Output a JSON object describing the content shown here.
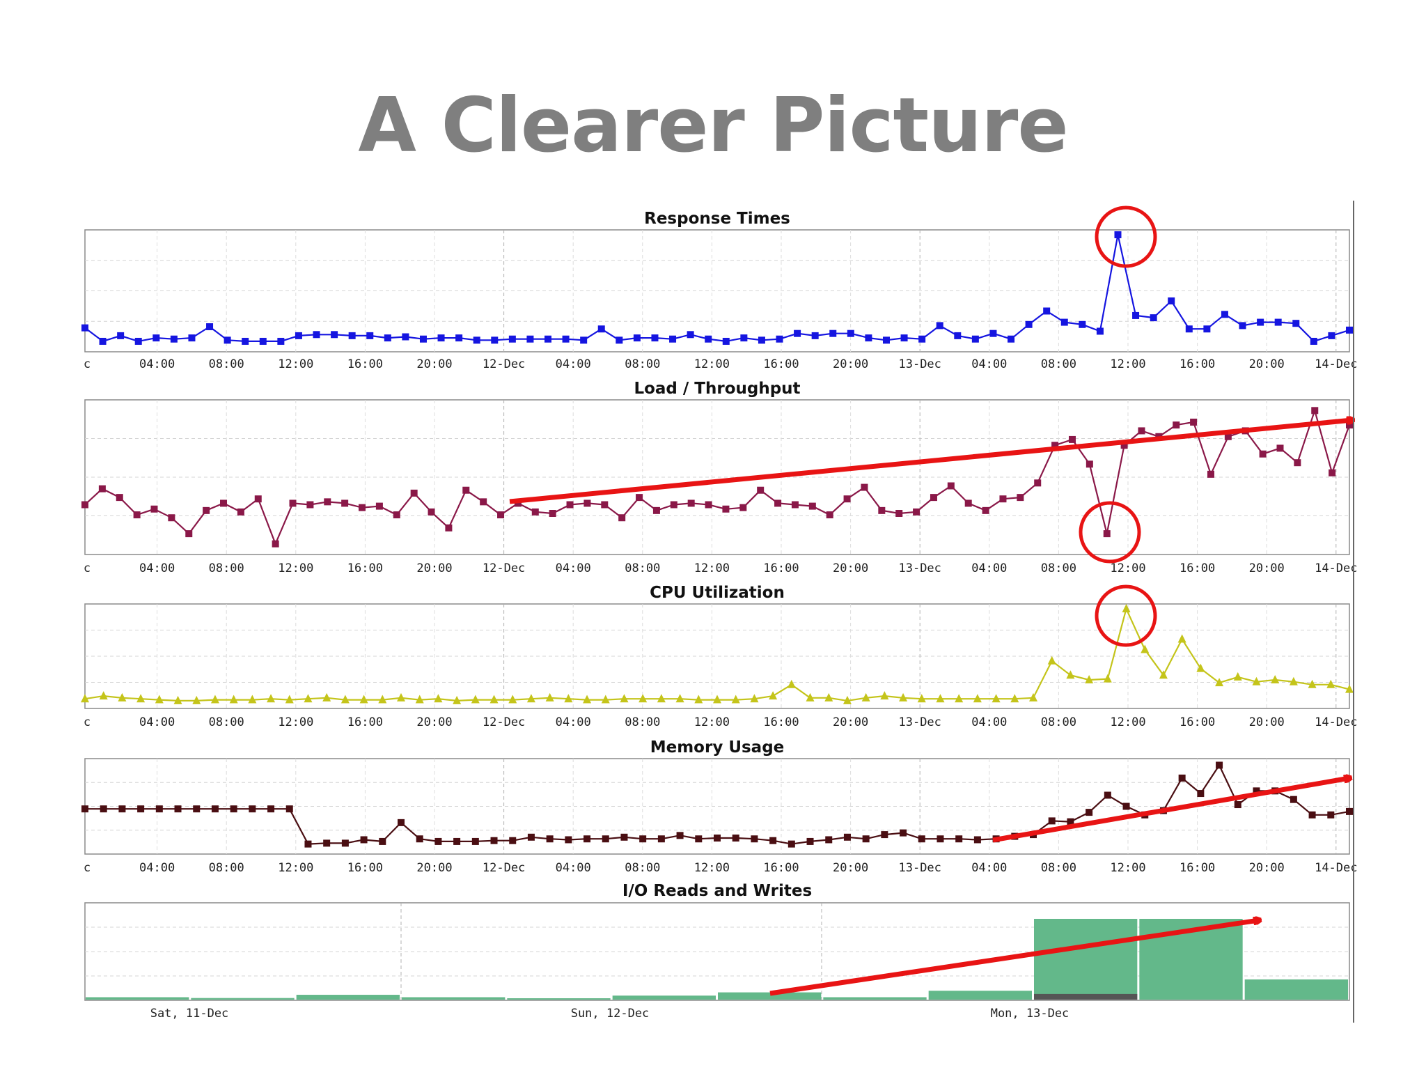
{
  "slide_title": "A Clearer Picture",
  "colors": {
    "response": "#1515e0",
    "load": "#8a1848",
    "cpu": "#c4c41a",
    "memory": "#4a0e12",
    "io_bar": "#63b88a",
    "io_dark": "#555555",
    "annotation": "#e81414"
  },
  "time_ticks": [
    "c",
    "04:00",
    "08:00",
    "12:00",
    "16:00",
    "20:00",
    "12-Dec",
    "04:00",
    "08:00",
    "12:00",
    "16:00",
    "20:00",
    "13-Dec",
    "04:00",
    "08:00",
    "12:00",
    "16:00",
    "20:00",
    "14-Dec"
  ],
  "day_ticks": [
    "Sat, 11-Dec",
    "Sun, 12-Dec",
    "Mon, 13-Dec"
  ],
  "chart_data": [
    {
      "type": "line",
      "title": "Response Times",
      "marker": "square",
      "x_ticks": [
        "c",
        "04:00",
        "08:00",
        "12:00",
        "16:00",
        "20:00",
        "12-Dec",
        "04:00",
        "08:00",
        "12:00",
        "16:00",
        "20:00",
        "13-Dec",
        "04:00",
        "08:00",
        "12:00",
        "16:00",
        "20:00",
        "14-Dec"
      ],
      "ylim": [
        0,
        100
      ],
      "series": [
        {
          "values": [
            17,
            5,
            10,
            5,
            8,
            7,
            8,
            18,
            6,
            5,
            5,
            5,
            10,
            11,
            11,
            10,
            10,
            8,
            9,
            7,
            8,
            8,
            6,
            6,
            7,
            7,
            7,
            7,
            6,
            16,
            6,
            8,
            8,
            7,
            11,
            7,
            5,
            8,
            6,
            7,
            12,
            10,
            12,
            12,
            8,
            6,
            8,
            7,
            19,
            10,
            7,
            12,
            7,
            20,
            32,
            22,
            20,
            14,
            100,
            28,
            26,
            41,
            16,
            16,
            29,
            19,
            22,
            22,
            21,
            5,
            10,
            15
          ]
        }
      ],
      "annotations": [
        {
          "type": "circle",
          "target": "peak"
        }
      ]
    },
    {
      "type": "line",
      "title": "Load / Throughput",
      "marker": "square",
      "x_ticks": [
        "c",
        "04:00",
        "08:00",
        "12:00",
        "16:00",
        "20:00",
        "12-Dec",
        "04:00",
        "08:00",
        "12:00",
        "16:00",
        "20:00",
        "13-Dec",
        "04:00",
        "08:00",
        "12:00",
        "16:00",
        "20:00",
        "14-Dec"
      ],
      "ylim": [
        0,
        100
      ],
      "series": [
        {
          "values": [
            31,
            42,
            36,
            24,
            28,
            22,
            11,
            27,
            32,
            26,
            35,
            4,
            32,
            31,
            33,
            32,
            29,
            30,
            24,
            39,
            26,
            15,
            41,
            33,
            24,
            32,
            26,
            25,
            31,
            32,
            31,
            22,
            36,
            27,
            31,
            32,
            31,
            28,
            29,
            41,
            32,
            31,
            30,
            24,
            35,
            43,
            27,
            25,
            26,
            36,
            44,
            32,
            27,
            35,
            36,
            46,
            72,
            76,
            59,
            11,
            72,
            82,
            78,
            86,
            88,
            52,
            78,
            82,
            66,
            70,
            60,
            96,
            53,
            86
          ]
        }
      ],
      "annotations": [
        {
          "type": "circle",
          "target": "dip"
        },
        {
          "type": "arrow",
          "direction": "up-trend"
        }
      ]
    },
    {
      "type": "line",
      "title": "CPU Utilization",
      "marker": "triangle",
      "x_ticks": [
        "c",
        "04:00",
        "08:00",
        "12:00",
        "16:00",
        "20:00",
        "12-Dec",
        "04:00",
        "08:00",
        "12:00",
        "16:00",
        "20:00",
        "13-Dec",
        "04:00",
        "08:00",
        "12:00",
        "16:00",
        "20:00",
        "14-Dec"
      ],
      "ylim": [
        0,
        100
      ],
      "series": [
        {
          "values": [
            5,
            8,
            6,
            5,
            4,
            3,
            3,
            4,
            4,
            4,
            5,
            4,
            5,
            6,
            4,
            4,
            4,
            6,
            4,
            5,
            3,
            4,
            4,
            4,
            5,
            6,
            5,
            4,
            4,
            5,
            5,
            5,
            5,
            4,
            4,
            4,
            5,
            8,
            20,
            6,
            6,
            3,
            6,
            8,
            6,
            5,
            5,
            5,
            5,
            5,
            5,
            6,
            45,
            30,
            25,
            26,
            100,
            57,
            30,
            68,
            37,
            22,
            28,
            23,
            25,
            23,
            20,
            20,
            15
          ]
        }
      ],
      "annotations": [
        {
          "type": "circle",
          "target": "peak"
        }
      ]
    },
    {
      "type": "line",
      "title": "Memory Usage",
      "marker": "square",
      "x_ticks": [
        "c",
        "04:00",
        "08:00",
        "12:00",
        "16:00",
        "20:00",
        "12-Dec",
        "04:00",
        "08:00",
        "12:00",
        "16:00",
        "20:00",
        "13-Dec",
        "04:00",
        "08:00",
        "12:00",
        "16:00",
        "20:00",
        "14-Dec"
      ],
      "ylim": [
        0,
        100
      ],
      "series": [
        {
          "values": [
            47,
            47,
            47,
            47,
            47,
            47,
            47,
            47,
            47,
            47,
            47,
            47,
            6,
            7,
            7,
            11,
            9,
            31,
            12,
            9,
            9,
            9,
            10,
            10,
            14,
            12,
            11,
            12,
            12,
            14,
            12,
            12,
            16,
            12,
            13,
            13,
            12,
            10,
            6,
            9,
            11,
            14,
            12,
            17,
            19,
            12,
            12,
            12,
            11,
            12,
            15,
            17,
            33,
            32,
            43,
            63,
            50,
            40,
            45,
            83,
            65,
            98,
            52,
            68,
            68,
            58,
            40,
            40,
            44
          ]
        }
      ],
      "annotations": [
        {
          "type": "arrow",
          "direction": "up-trend"
        }
      ]
    },
    {
      "type": "bar",
      "title": "I/O Reads and Writes",
      "x_ticks": [
        "Sat, 11-Dec",
        "Sun, 12-Dec",
        "Mon, 13-Dec"
      ],
      "ylim": [
        0,
        100
      ],
      "series": [
        {
          "values": [
            3,
            2,
            6,
            3,
            1,
            5,
            9,
            3,
            11,
            100,
            100,
            25
          ]
        },
        {
          "values": [
            0,
            0,
            0,
            0,
            0,
            0,
            0,
            0,
            0,
            7,
            0,
            0
          ]
        }
      ],
      "annotations": [
        {
          "type": "arrow",
          "direction": "up-trend"
        }
      ]
    }
  ]
}
